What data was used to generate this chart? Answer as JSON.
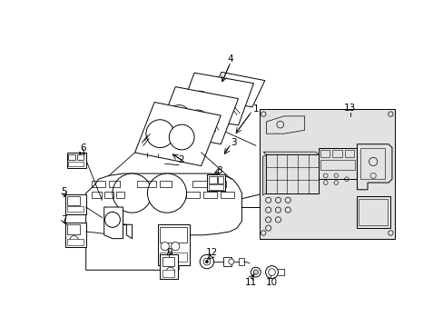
{
  "background_color": "#ffffff",
  "line_color": "#000000",
  "box13_bg": "#e0e0e0",
  "lw": 0.7,
  "font_size": 7.5
}
